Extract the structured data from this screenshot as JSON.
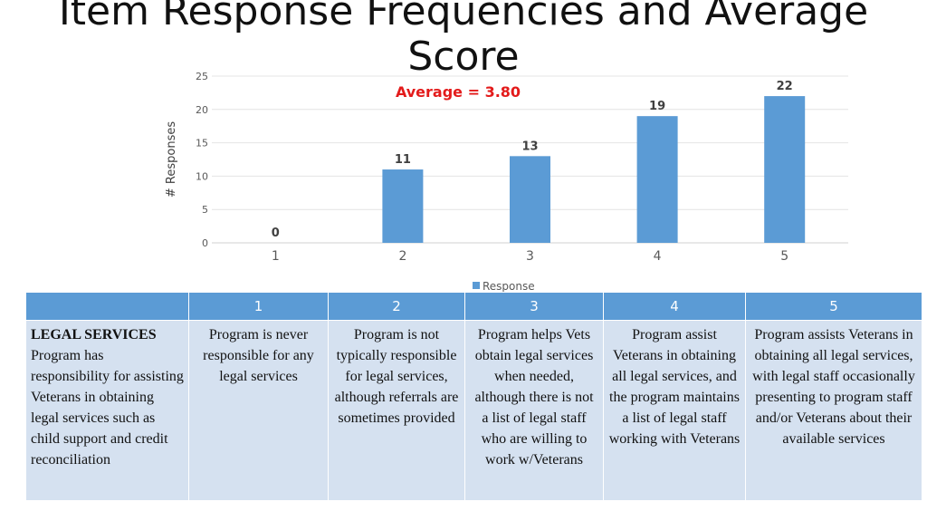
{
  "slide": {
    "title": "Item Response Frequencies and Average Score"
  },
  "chart_data": {
    "type": "bar",
    "categories": [
      "1",
      "2",
      "3",
      "4",
      "5"
    ],
    "values": [
      0,
      11,
      13,
      19,
      22
    ],
    "ylabel": "# Responses",
    "xlabel": "",
    "ylim": [
      0,
      25
    ],
    "yticks": [
      0,
      5,
      10,
      15,
      20,
      25
    ],
    "legend": [
      "Response"
    ],
    "legend_position": "bottom",
    "grid": true,
    "annotation": "Average = 3.80",
    "bar_color": "#5b9bd5",
    "annotation_color": "#e31b1b"
  },
  "table": {
    "headers": [
      "",
      "1",
      "2",
      "3",
      "4",
      "5"
    ],
    "category_title": "LEGAL SERVICES",
    "category_text": "Program has responsibility for assisting Veterans in obtaining legal services such as child support and credit reconciliation",
    "cells": [
      "Program is never responsible for any legal services",
      "Program is not typically responsible for legal services, although referrals are sometimes provided",
      "Program helps Vets obtain legal services when needed, although there is not a list of legal staff who are willing to work w/Veterans",
      "Program assist Veterans in obtaining all legal services, and the program maintains a list of legal staff working with Veterans",
      "Program assists Veterans in obtaining all legal services, with legal staff occasionally presenting to program staff and/or Veterans about their available services"
    ]
  }
}
